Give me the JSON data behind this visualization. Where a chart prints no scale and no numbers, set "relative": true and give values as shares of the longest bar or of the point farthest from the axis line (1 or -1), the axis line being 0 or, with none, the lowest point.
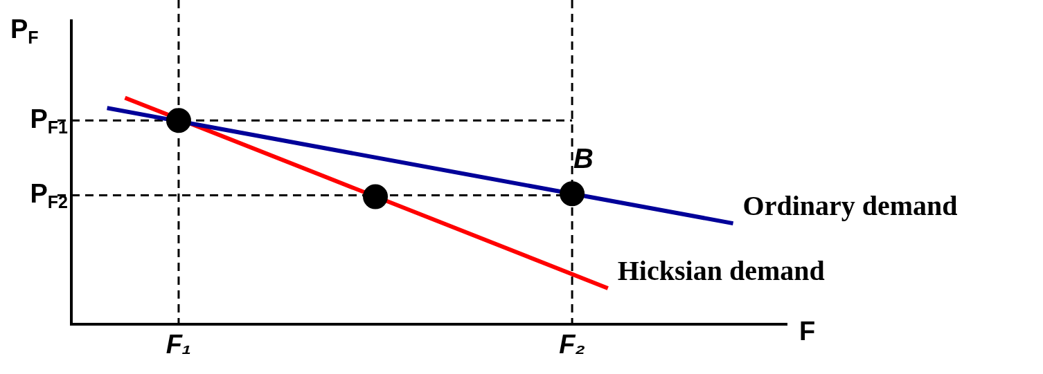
{
  "chart_data": {
    "type": "line",
    "relative": true,
    "xlabel": "F",
    "ylabel": "P$_{F}$",
    "grid": false,
    "legend": false,
    "categories": [
      null,
      null,
      null,
      null,
      null,
      null,
      "F₁",
      null,
      null,
      null,
      null,
      null,
      null,
      null,
      null,
      null,
      null,
      null,
      null,
      null,
      null,
      null,
      null,
      null,
      null,
      null,
      null,
      null,
      "F₂",
      null,
      null,
      null,
      null,
      null,
      null,
      null,
      null,
      null,
      null,
      null,
      null
    ],
    "series": [
      {
        "name": "Ordinary demand",
        "color": "#000099",
        "values": [
          null,
          null,
          0.955,
          null,
          null,
          null,
          null,
          null,
          null,
          null,
          null,
          null,
          null,
          null,
          null,
          null,
          null,
          null,
          null,
          null,
          null,
          null,
          null,
          null,
          null,
          null,
          null,
          null,
          null,
          null,
          null,
          null,
          null,
          null,
          null,
          null,
          null,
          0.446,
          null,
          null,
          null
        ]
      },
      {
        "name": "Hicksian demand",
        "color": "#ff0000",
        "values": [
          null,
          null,
          null,
          1,
          null,
          null,
          null,
          null,
          null,
          null,
          null,
          null,
          null,
          null,
          null,
          null,
          null,
          null,
          null,
          null,
          null,
          null,
          null,
          null,
          null,
          null,
          null,
          null,
          null,
          null,
          0.16,
          null,
          null,
          null,
          null,
          null,
          null,
          null,
          null,
          null,
          null
        ]
      },
      {
        "type": "scatter",
        "color": "#000000",
        "marker": "circle",
        "values": [
          null,
          null,
          null,
          null,
          null,
          null,
          0.9,
          null,
          null,
          null,
          null,
          null,
          null,
          null,
          null,
          null,
          null,
          0.564,
          null,
          null,
          null,
          null,
          null,
          null,
          null,
          null,
          null,
          null,
          0.577,
          null,
          null,
          null,
          null,
          null,
          null,
          null,
          null,
          null,
          null,
          null,
          null
        ]
      }
    ],
    "ref_lines": [
      {
        "axis": "x",
        "value": "F₁",
        "line_style": "dashed",
        "color": "#000000"
      },
      {
        "axis": "x",
        "value": "F₂",
        "line_style": "dashed",
        "color": "#000000"
      },
      {
        "axis": "y",
        "value": 0.9,
        "label": "P$_{F1}$",
        "line_style": "dashed",
        "color": "#000000"
      },
      {
        "axis": "y",
        "value": 0.57,
        "label": "P$_{F2}$",
        "line_style": "dashed",
        "color": "#000000"
      }
    ],
    "annotations": [
      {
        "text": "B",
        "x": "F₂",
        "y": 0.577
      }
    ]
  }
}
